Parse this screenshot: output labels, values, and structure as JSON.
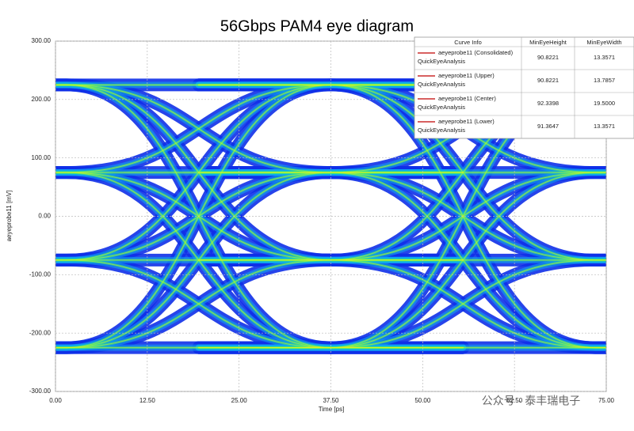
{
  "chart_data": {
    "type": "eye",
    "title": "56Gbps PAM4 eye diagram",
    "xlabel": "Time [ps]",
    "ylabel": "aeyeprobe11 [mV]",
    "xlim": [
      0,
      75
    ],
    "ylim": [
      -300,
      300
    ],
    "xticks": [
      {
        "value": 0,
        "label": "0.00"
      },
      {
        "value": 12.5,
        "label": "12.50"
      },
      {
        "value": 25,
        "label": "25.00"
      },
      {
        "value": 37.5,
        "label": "37.50"
      },
      {
        "value": 50,
        "label": "50.00"
      },
      {
        "value": 62.5,
        "label": "62.50"
      },
      {
        "value": 75,
        "label": "75.00"
      }
    ],
    "yticks": [
      {
        "value": 300,
        "label": "300.00"
      },
      {
        "value": 200,
        "label": "200.00"
      },
      {
        "value": 100,
        "label": "100.00"
      },
      {
        "value": 0,
        "label": "0.00"
      },
      {
        "value": -100,
        "label": "-100.00"
      },
      {
        "value": -200,
        "label": "-200.00"
      },
      {
        "value": -300,
        "label": "-300.00"
      }
    ],
    "grid": true,
    "levels": [
      -225,
      -75,
      75,
      225
    ],
    "crossings": [
      19.5,
      55.5
    ],
    "table": {
      "columns": [
        "Curve Info",
        "MinEyeHeight",
        "MinEyeWidth"
      ],
      "rows": [
        {
          "name": "aeyeprobe11 (Consolidated)",
          "sub": "QuickEyeAnalysis",
          "height": "90.8221",
          "width": "13.3571"
        },
        {
          "name": "aeyeprobe11 (Upper)",
          "sub": "QuickEyeAnalysis",
          "height": "90.8221",
          "width": "13.7857"
        },
        {
          "name": "aeyeprobe11 (Center)",
          "sub": "QuickEyeAnalysis",
          "height": "92.3398",
          "width": "19.5000"
        },
        {
          "name": "aeyeprobe11 (Lower)",
          "sub": "QuickEyeAnalysis",
          "height": "91.3647",
          "width": "13.3571"
        }
      ]
    },
    "watermark": "公众号 · 泰丰瑞电子"
  }
}
